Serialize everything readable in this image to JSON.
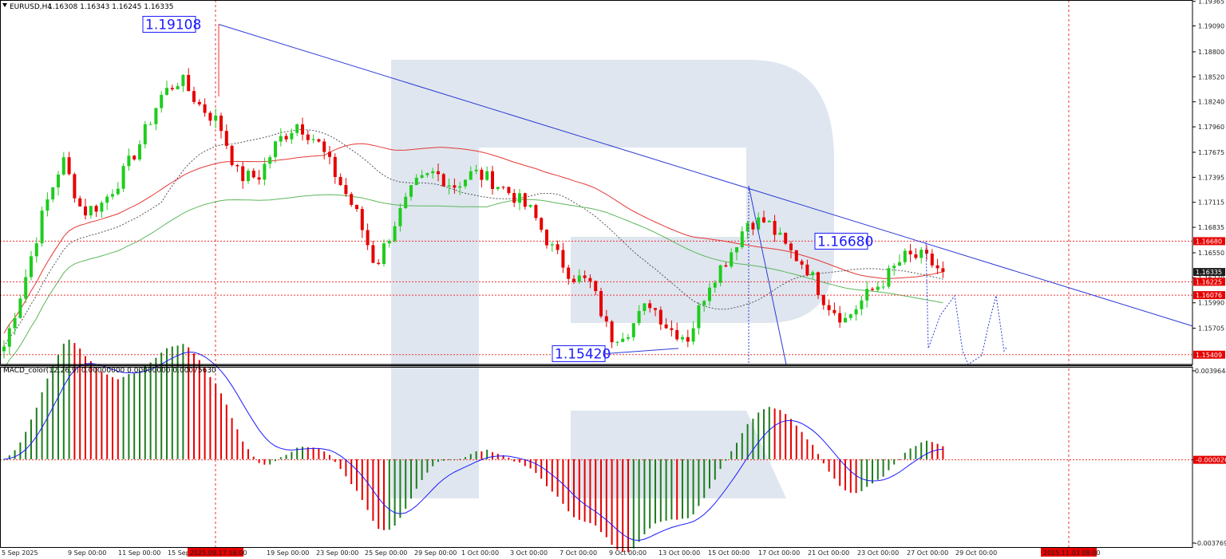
{
  "chart_data": {
    "type": "candlestick",
    "symbol": "EURUSD,H4",
    "ohlc_header": "1.16308 1.16343 1.16245 1.16335",
    "price_axis": {
      "ticks": [
        "1.19365",
        "1.19090",
        "1.18800",
        "1.18520",
        "1.18240",
        "1.17960",
        "1.17675",
        "1.17395",
        "1.17115",
        "1.16835",
        "1.16550",
        "1.16270",
        "1.15990",
        "1.15705"
      ],
      "range": [
        1.153,
        1.1938
      ]
    },
    "price_tags": [
      {
        "value": 1.1668,
        "label": "1.16680",
        "style": "red"
      },
      {
        "value": 1.16335,
        "label": "1.16335",
        "style": "dark"
      },
      {
        "value": 1.16225,
        "label": "1.16225",
        "style": "red"
      },
      {
        "value": 1.16076,
        "label": "1.16076",
        "style": "red"
      },
      {
        "value": 1.15409,
        "label": "1.15409",
        "style": "red"
      }
    ],
    "horizontal_levels": [
      1.1668,
      1.16225,
      1.16076,
      1.15409
    ],
    "callouts": [
      {
        "label": "1.19108",
        "value": 1.19108
      },
      {
        "label": "1.16680",
        "value": 1.1668
      },
      {
        "label": "1.15420",
        "value": 1.1542
      }
    ],
    "macd": {
      "label": "MACD_color(12,26,9) 0.00000000 0.00000000 0.00075630",
      "axis_ticks": [
        "0.0039644",
        "-0.000026",
        "-0.0037692"
      ],
      "range": [
        -0.0037692,
        0.0039644
      ]
    },
    "time_labels": [
      "5 Sep 2025",
      "9 Sep 00:00",
      "11 Sep 00:00",
      "15 Sep 00:00",
      "19 Sep 00:00",
      "23 Sep 00:00",
      "25 Sep 00:00",
      "29 Sep 00:00",
      "1 Oct 00:00",
      "3 Oct 00:00",
      "7 Oct 00:00",
      "9 Oct 00:00",
      "13 Oct 00:00",
      "15 Oct 00:00",
      "17 Oct 00:00",
      "21 Oct 00:00",
      "23 Oct 00:00",
      "27 Oct 00:00",
      "29 Oct 00:00"
    ],
    "highlight_times": [
      "2025.09.17 16:00",
      "2025.11.03 08:00"
    ],
    "anchors": [
      [
        1.155,
        1.1575
      ],
      [
        1.162,
        1.165
      ],
      [
        1.17,
        1.174
      ],
      [
        1.176,
        1.18
      ],
      [
        1.17,
        1.169
      ],
      [
        1.171,
        1.1735
      ],
      [
        1.174,
        1.177
      ],
      [
        1.178,
        1.181
      ],
      [
        1.183,
        1.189
      ],
      [
        1.185,
        1.1835
      ],
      [
        1.182,
        1.18
      ],
      [
        1.18,
        1.176
      ],
      [
        1.174,
        1.173
      ],
      [
        1.174,
        1.175
      ],
      [
        1.178,
        1.1805
      ],
      [
        1.18,
        1.181
      ],
      [
        1.178,
        1.175
      ],
      [
        1.174,
        1.1735
      ],
      [
        1.17,
        1.167
      ],
      [
        1.164,
        1.166
      ],
      [
        1.169,
        1.171
      ],
      [
        1.173,
        1.175
      ],
      [
        1.1745,
        1.174
      ],
      [
        1.173,
        1.172
      ],
      [
        1.1745,
        1.173
      ],
      [
        1.1735,
        1.172
      ],
      [
        1.172,
        1.171
      ],
      [
        1.17,
        1.167
      ],
      [
        1.166,
        1.165
      ],
      [
        1.163,
        1.162
      ],
      [
        1.162,
        1.16
      ],
      [
        1.156,
        1.155
      ],
      [
        1.157,
        1.158
      ],
      [
        1.16,
        1.159
      ],
      [
        1.157,
        1.1545
      ],
      [
        1.156,
        1.16
      ],
      [
        1.162,
        1.164
      ],
      [
        1.165,
        1.167
      ],
      [
        1.169,
        1.172
      ],
      [
        1.169,
        1.167
      ],
      [
        1.166,
        1.165
      ],
      [
        1.164,
        1.162
      ],
      [
        1.16,
        1.159
      ],
      [
        1.158,
        1.16
      ],
      [
        1.1605,
        1.162
      ],
      [
        1.1625,
        1.164
      ],
      [
        1.165,
        1.166
      ],
      [
        1.165,
        1.164
      ],
      [
        1.1633,
        1.1633
      ]
    ],
    "trendlines": [
      {
        "from": [
          "2025.09.17 16:00",
          1.19108
        ],
        "to": [
          "extends right",
          1.1573
        ]
      },
      {
        "from": [
          "9 Oct",
          1.1542
        ],
        "to": [
          "14 Oct",
          1.1548
        ]
      }
    ]
  }
}
